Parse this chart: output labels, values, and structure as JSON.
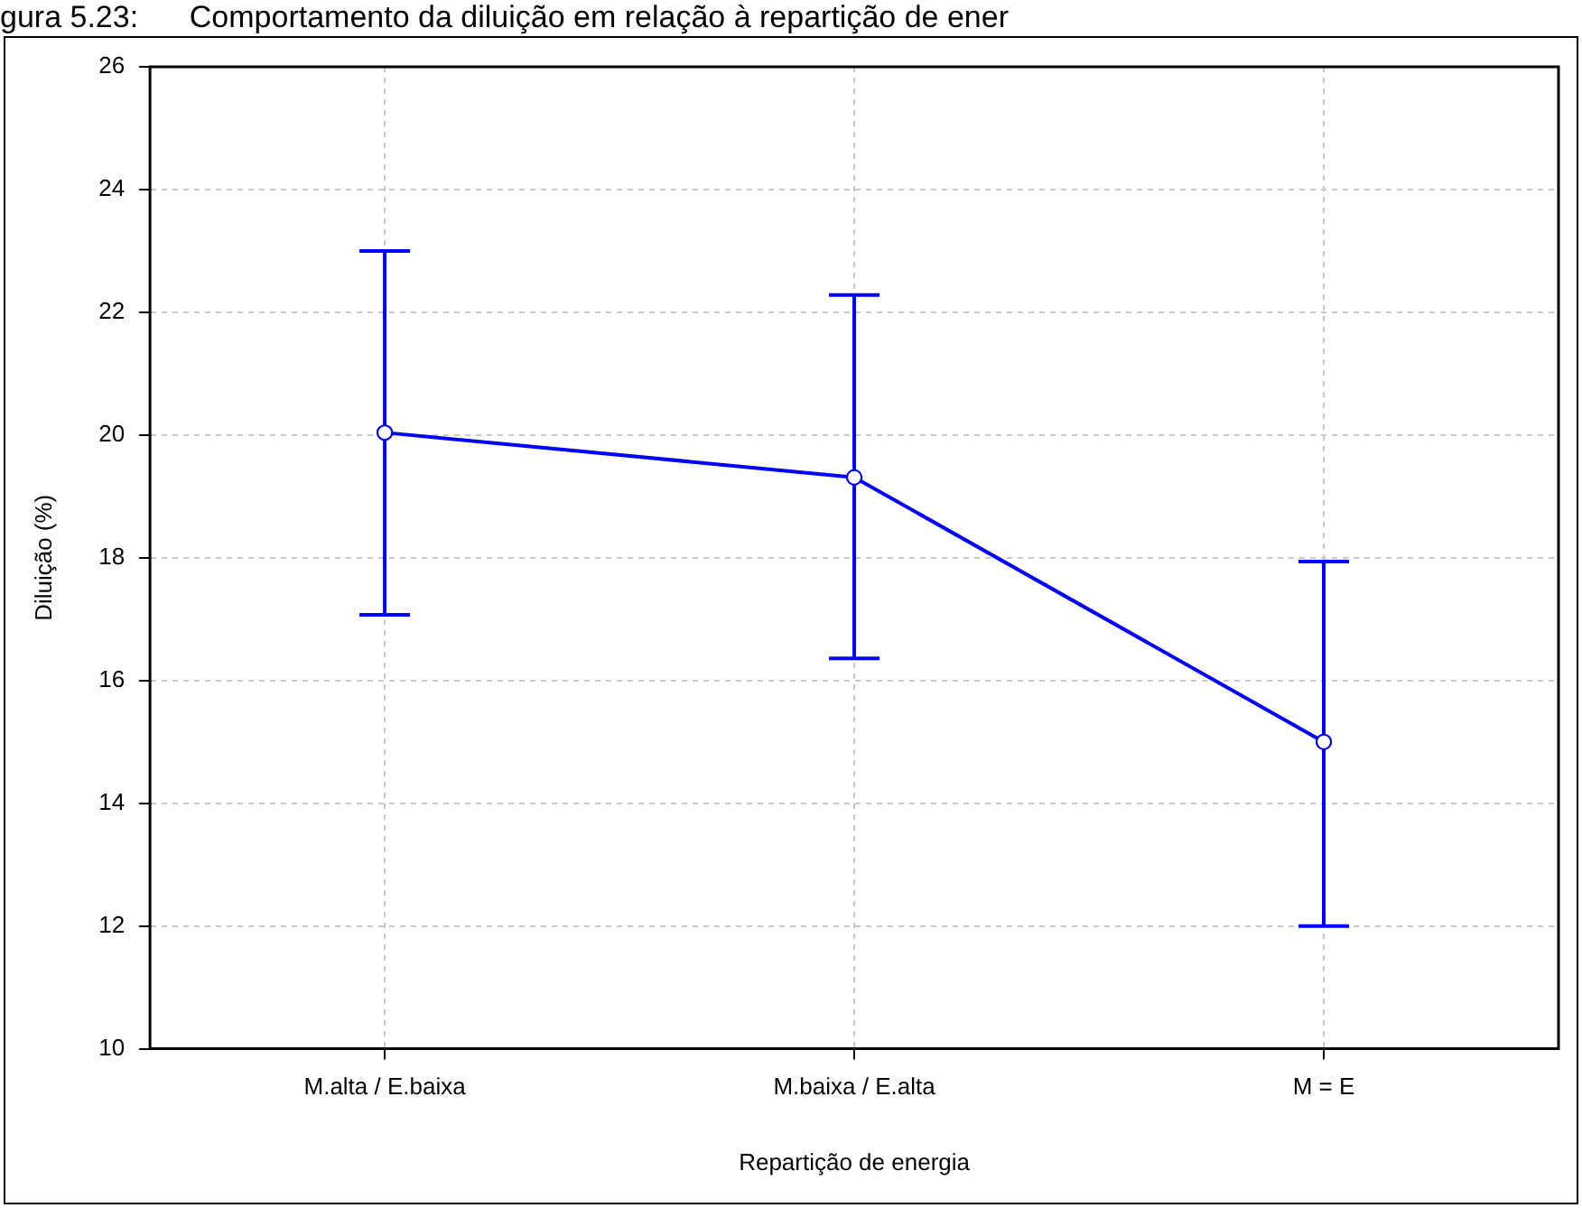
{
  "chart_data": {
    "type": "line",
    "title": "gura 5.23:      Comportamento da diluição em relação à repartição de ener",
    "xlabel": "Repartição de energia",
    "ylabel": "Diluição (%)",
    "categories": [
      "M.alta / E.baixa",
      "M.baixa / E.alta",
      "M = E"
    ],
    "series": [
      {
        "color": "#0000ff",
        "values": [
          20.04,
          19.31,
          15.0
        ],
        "errors": [
          [
            17.07,
            23.0
          ],
          [
            16.36,
            22.28
          ],
          [
            12.0,
            17.94
          ]
        ]
      }
    ],
    "ylim": [
      10,
      26
    ],
    "yticks": [
      10,
      12,
      14,
      16,
      18,
      20,
      22,
      24,
      26
    ],
    "grid": true,
    "marker": "circle",
    "line_style": "solid",
    "legend": false
  }
}
